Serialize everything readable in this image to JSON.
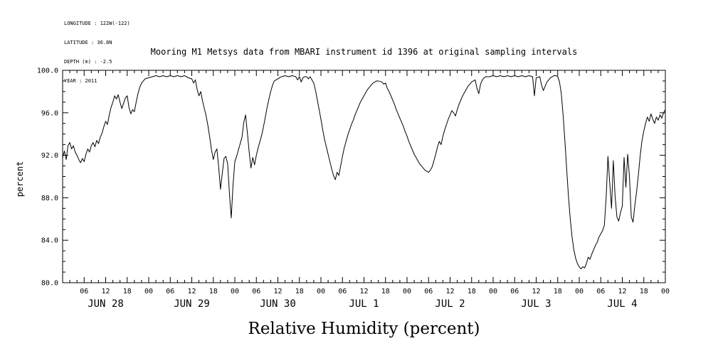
{
  "metadata": {
    "longitude": "LONGITUDE : 122W(-122)",
    "latitude": "LATITUDE : 36.8N",
    "depth": "DEPTH (m) : -2.5",
    "year": "YEAR : 2011"
  },
  "title": "Mooring M1 Metsys data from MBARI instrument id 1396 at original sampling intervals",
  "chart_data": {
    "type": "line",
    "title": "Mooring M1 Metsys data from MBARI instrument id 1396 at original sampling intervals",
    "xlabel": "Relative Humidity (percent)",
    "ylabel": "percent",
    "ylim": [
      80,
      100
    ],
    "y_ticks": [
      100,
      96,
      92,
      88,
      84,
      80
    ],
    "y_tick_labels": [
      "100.0",
      "96.0",
      "92.0",
      "88.0",
      "84.0",
      "80.0"
    ],
    "y_minor_step": 1,
    "xlim_hours": [
      0,
      168
    ],
    "x_unit": "hours from JUN 28 2011 00:00",
    "x_major_step_hours": 6,
    "x_minor_step_hours": 2,
    "x_tick_labels": [
      "06",
      "12",
      "18",
      "00",
      "06",
      "12",
      "18",
      "00",
      "06",
      "12",
      "18",
      "00",
      "06",
      "12",
      "18",
      "00",
      "06",
      "12",
      "18",
      "00",
      "06",
      "12",
      "18",
      "00",
      "06",
      "12",
      "18",
      "00"
    ],
    "days": [
      "JUN 28",
      "JUN 29",
      "JUN 30",
      "JUL 1",
      "JUL 2",
      "JUL 3",
      "JUL 4"
    ],
    "grid": false,
    "legend": "none",
    "line_color": "#000000",
    "background_color": "#ffffff",
    "series": [
      {
        "name": "relative_humidity",
        "points": [
          [
            0,
            91.8
          ],
          [
            0.5,
            92.4
          ],
          [
            1,
            91.6
          ],
          [
            1.5,
            92.9
          ],
          [
            2,
            93.2
          ],
          [
            2.5,
            92.6
          ],
          [
            3,
            92.9
          ],
          [
            3.5,
            92.3
          ],
          [
            4,
            92.0
          ],
          [
            4.5,
            91.6
          ],
          [
            5,
            91.3
          ],
          [
            5.5,
            91.7
          ],
          [
            6,
            91.4
          ],
          [
            6.5,
            92.1
          ],
          [
            7,
            92.6
          ],
          [
            7.5,
            92.3
          ],
          [
            8,
            92.9
          ],
          [
            8.5,
            93.2
          ],
          [
            9,
            92.8
          ],
          [
            9.5,
            93.4
          ],
          [
            10,
            93.1
          ],
          [
            10.5,
            93.7
          ],
          [
            11,
            94.1
          ],
          [
            11.5,
            94.7
          ],
          [
            12,
            95.2
          ],
          [
            12.5,
            94.9
          ],
          [
            13,
            95.8
          ],
          [
            13.5,
            96.5
          ],
          [
            14,
            97.0
          ],
          [
            14.5,
            97.6
          ],
          [
            15,
            97.3
          ],
          [
            15.5,
            97.7
          ],
          [
            16,
            97.0
          ],
          [
            16.5,
            96.4
          ],
          [
            17,
            96.9
          ],
          [
            17.5,
            97.4
          ],
          [
            18,
            97.6
          ],
          [
            18.5,
            96.5
          ],
          [
            19,
            95.9
          ],
          [
            19.5,
            96.3
          ],
          [
            20,
            96.1
          ],
          [
            20.5,
            97.0
          ],
          [
            21,
            97.8
          ],
          [
            21.5,
            98.4
          ],
          [
            22,
            98.8
          ],
          [
            22.5,
            99.0
          ],
          [
            23,
            99.2
          ],
          [
            24,
            99.3
          ],
          [
            25,
            99.4
          ],
          [
            26,
            99.5
          ],
          [
            27,
            99.4
          ],
          [
            28,
            99.5
          ],
          [
            29,
            99.4
          ],
          [
            30,
            99.5
          ],
          [
            31,
            99.4
          ],
          [
            32,
            99.5
          ],
          [
            33,
            99.4
          ],
          [
            34,
            99.5
          ],
          [
            35,
            99.3
          ],
          [
            36,
            99.2
          ],
          [
            36.5,
            98.8
          ],
          [
            37,
            99.1
          ],
          [
            37.5,
            98.2
          ],
          [
            38,
            97.6
          ],
          [
            38.5,
            98.0
          ],
          [
            39,
            97.1
          ],
          [
            39.5,
            96.4
          ],
          [
            40,
            95.7
          ],
          [
            40.5,
            94.8
          ],
          [
            41,
            93.7
          ],
          [
            41.5,
            92.5
          ],
          [
            42,
            91.6
          ],
          [
            42.5,
            92.3
          ],
          [
            43,
            92.6
          ],
          [
            43.5,
            90.9
          ],
          [
            44,
            88.8
          ],
          [
            44.5,
            90.3
          ],
          [
            45,
            91.7
          ],
          [
            45.5,
            91.9
          ],
          [
            46,
            91.2
          ],
          [
            46.5,
            88.4
          ],
          [
            47,
            86.1
          ],
          [
            47.5,
            89.2
          ],
          [
            48,
            91.4
          ],
          [
            48.5,
            91.9
          ],
          [
            49,
            92.5
          ],
          [
            49.5,
            93.1
          ],
          [
            50,
            93.7
          ],
          [
            50.5,
            95.1
          ],
          [
            51,
            95.8
          ],
          [
            51.5,
            94.1
          ],
          [
            52,
            92.3
          ],
          [
            52.5,
            90.8
          ],
          [
            53,
            91.8
          ],
          [
            53.5,
            91.1
          ],
          [
            54,
            92.0
          ],
          [
            54.5,
            92.7
          ],
          [
            55,
            93.3
          ],
          [
            55.5,
            93.9
          ],
          [
            56,
            94.7
          ],
          [
            56.5,
            95.6
          ],
          [
            57,
            96.5
          ],
          [
            57.5,
            97.3
          ],
          [
            58,
            98.0
          ],
          [
            58.5,
            98.6
          ],
          [
            59,
            99.0
          ],
          [
            60,
            99.2
          ],
          [
            61,
            99.4
          ],
          [
            62,
            99.5
          ],
          [
            63,
            99.4
          ],
          [
            64,
            99.5
          ],
          [
            65,
            99.4
          ],
          [
            65.5,
            99.1
          ],
          [
            66,
            99.4
          ],
          [
            66.5,
            98.9
          ],
          [
            67,
            99.3
          ],
          [
            67.5,
            99.4
          ],
          [
            68,
            99.4
          ],
          [
            68.5,
            99.2
          ],
          [
            69,
            99.4
          ],
          [
            69.5,
            99.1
          ],
          [
            70,
            98.8
          ],
          [
            70.5,
            98.1
          ],
          [
            71,
            97.2
          ],
          [
            71.5,
            96.3
          ],
          [
            72,
            95.4
          ],
          [
            72.5,
            94.4
          ],
          [
            73,
            93.5
          ],
          [
            73.5,
            92.8
          ],
          [
            74,
            92.1
          ],
          [
            74.5,
            91.4
          ],
          [
            75,
            90.7
          ],
          [
            75.5,
            90.1
          ],
          [
            76,
            89.7
          ],
          [
            76.5,
            90.4
          ],
          [
            77,
            90.1
          ],
          [
            77.5,
            91.0
          ],
          [
            78,
            91.9
          ],
          [
            78.5,
            92.7
          ],
          [
            79,
            93.3
          ],
          [
            79.5,
            93.9
          ],
          [
            80,
            94.4
          ],
          [
            80.5,
            94.9
          ],
          [
            81,
            95.3
          ],
          [
            81.5,
            95.8
          ],
          [
            82,
            96.2
          ],
          [
            82.5,
            96.6
          ],
          [
            83,
            97.0
          ],
          [
            83.5,
            97.3
          ],
          [
            84,
            97.6
          ],
          [
            84.5,
            97.9
          ],
          [
            85,
            98.2
          ],
          [
            85.5,
            98.4
          ],
          [
            86,
            98.6
          ],
          [
            86.5,
            98.8
          ],
          [
            87,
            98.9
          ],
          [
            87.5,
            99.0
          ],
          [
            88,
            99.0
          ],
          [
            89,
            98.9
          ],
          [
            89.5,
            98.7
          ],
          [
            90,
            98.8
          ],
          [
            90.5,
            98.3
          ],
          [
            91,
            98.0
          ],
          [
            91.5,
            97.6
          ],
          [
            92,
            97.2
          ],
          [
            92.5,
            96.8
          ],
          [
            93,
            96.3
          ],
          [
            93.5,
            95.9
          ],
          [
            94,
            95.5
          ],
          [
            94.5,
            95.1
          ],
          [
            95,
            94.7
          ],
          [
            95.5,
            94.2
          ],
          [
            96,
            93.8
          ],
          [
            96.5,
            93.3
          ],
          [
            97,
            92.9
          ],
          [
            97.5,
            92.5
          ],
          [
            98,
            92.1
          ],
          [
            98.5,
            91.8
          ],
          [
            99,
            91.5
          ],
          [
            99.5,
            91.2
          ],
          [
            100,
            91.0
          ],
          [
            100.5,
            90.8
          ],
          [
            101,
            90.6
          ],
          [
            101.5,
            90.5
          ],
          [
            102,
            90.4
          ],
          [
            102.5,
            90.6
          ],
          [
            103,
            90.9
          ],
          [
            103.5,
            91.5
          ],
          [
            104,
            92.1
          ],
          [
            104.5,
            92.8
          ],
          [
            105,
            93.3
          ],
          [
            105.5,
            93.0
          ],
          [
            106,
            93.8
          ],
          [
            106.5,
            94.4
          ],
          [
            107,
            94.9
          ],
          [
            107.5,
            95.4
          ],
          [
            108,
            95.8
          ],
          [
            108.5,
            96.2
          ],
          [
            109,
            96.0
          ],
          [
            109.5,
            95.7
          ],
          [
            110,
            96.3
          ],
          [
            110.5,
            96.8
          ],
          [
            111,
            97.2
          ],
          [
            111.5,
            97.6
          ],
          [
            112,
            97.9
          ],
          [
            112.5,
            98.2
          ],
          [
            113,
            98.5
          ],
          [
            113.5,
            98.7
          ],
          [
            114,
            98.9
          ],
          [
            114.5,
            99.0
          ],
          [
            115,
            99.1
          ],
          [
            115.5,
            98.3
          ],
          [
            116,
            97.8
          ],
          [
            116.5,
            98.7
          ],
          [
            117,
            99.1
          ],
          [
            117.5,
            99.3
          ],
          [
            118,
            99.4
          ],
          [
            119,
            99.4
          ],
          [
            120,
            99.5
          ],
          [
            121,
            99.4
          ],
          [
            122,
            99.5
          ],
          [
            123,
            99.4
          ],
          [
            124,
            99.5
          ],
          [
            125,
            99.4
          ],
          [
            126,
            99.5
          ],
          [
            127,
            99.4
          ],
          [
            128,
            99.5
          ],
          [
            129,
            99.4
          ],
          [
            130,
            99.5
          ],
          [
            131,
            99.4
          ],
          [
            131.5,
            97.6
          ],
          [
            132,
            99.3
          ],
          [
            133,
            99.4
          ],
          [
            133.5,
            98.6
          ],
          [
            134,
            98.1
          ],
          [
            134.5,
            98.5
          ],
          [
            135,
            98.9
          ],
          [
            135.5,
            99.1
          ],
          [
            136,
            99.3
          ],
          [
            136.5,
            99.4
          ],
          [
            137,
            99.5
          ],
          [
            137.5,
            99.5
          ],
          [
            138,
            99.4
          ],
          [
            138.5,
            98.9
          ],
          [
            139,
            97.8
          ],
          [
            139.5,
            95.8
          ],
          [
            140,
            93.4
          ],
          [
            140.5,
            90.7
          ],
          [
            141,
            88.1
          ],
          [
            141.5,
            86.0
          ],
          [
            142,
            84.3
          ],
          [
            142.5,
            83.1
          ],
          [
            143,
            82.3
          ],
          [
            143.5,
            81.8
          ],
          [
            144,
            81.5
          ],
          [
            144.5,
            81.3
          ],
          [
            145,
            81.5
          ],
          [
            145.5,
            81.4
          ],
          [
            146,
            81.8
          ],
          [
            146.5,
            82.4
          ],
          [
            147,
            82.2
          ],
          [
            147.5,
            82.7
          ],
          [
            148,
            83.1
          ],
          [
            148.5,
            83.5
          ],
          [
            149,
            83.8
          ],
          [
            149.5,
            84.3
          ],
          [
            150,
            84.6
          ],
          [
            150.5,
            84.9
          ],
          [
            151,
            85.4
          ],
          [
            151.5,
            88.0
          ],
          [
            152,
            91.9
          ],
          [
            152.5,
            89.4
          ],
          [
            153,
            87.0
          ],
          [
            153.5,
            91.5
          ],
          [
            154,
            88.1
          ],
          [
            154.5,
            86.2
          ],
          [
            155,
            85.8
          ],
          [
            155.5,
            86.6
          ],
          [
            156,
            87.2
          ],
          [
            156.5,
            91.8
          ],
          [
            157,
            89.0
          ],
          [
            157.5,
            92.1
          ],
          [
            158,
            90.0
          ],
          [
            158.5,
            86.2
          ],
          [
            159,
            85.7
          ],
          [
            159.5,
            87.3
          ],
          [
            160,
            88.6
          ],
          [
            160.5,
            90.2
          ],
          [
            161,
            92.0
          ],
          [
            161.5,
            93.4
          ],
          [
            162,
            94.3
          ],
          [
            162.5,
            95.0
          ],
          [
            163,
            95.6
          ],
          [
            163.5,
            95.2
          ],
          [
            164,
            95.9
          ],
          [
            164.5,
            95.4
          ],
          [
            165,
            95.0
          ],
          [
            165.5,
            95.6
          ],
          [
            166,
            95.3
          ],
          [
            166.5,
            95.8
          ],
          [
            167,
            95.5
          ],
          [
            167.5,
            96.0
          ],
          [
            168,
            96.3
          ]
        ]
      }
    ]
  }
}
